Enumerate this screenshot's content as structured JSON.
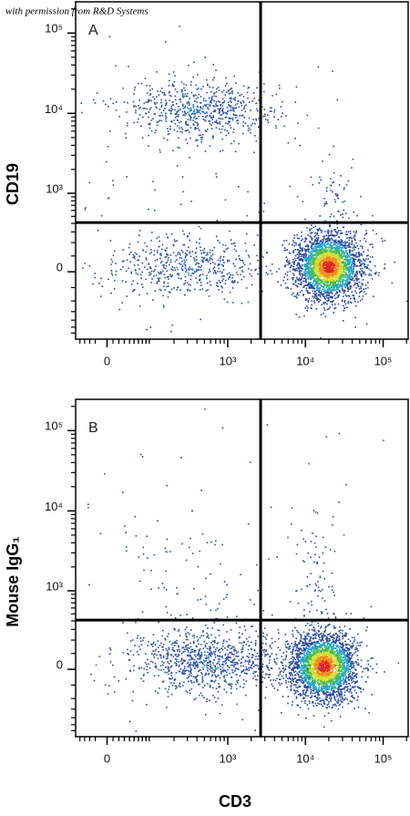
{
  "watermark": "with permission from R&D Systems",
  "x_axis_label": "CD3",
  "chart_data": [
    {
      "type": "scatter",
      "panel_label": "A",
      "y_axis_label": "CD19",
      "xscale": "biex",
      "yscale": "biex",
      "xlim": [
        -60,
        210000
      ],
      "ylim": [
        -720,
        245000
      ],
      "xticks": [
        0,
        {
          "value": 1000,
          "label": "10³"
        },
        {
          "value": 10000,
          "label": "10⁴"
        },
        {
          "value": 100000,
          "label": "10⁵"
        }
      ],
      "yticks": [
        0,
        {
          "value": 1000,
          "label": "10³"
        },
        {
          "value": 10000,
          "label": "10⁴"
        },
        {
          "value": 100000,
          "label": "10⁵"
        }
      ],
      "gate": {
        "x": 2650,
        "y": 410
      }
    },
    {
      "type": "scatter",
      "panel_label": "B",
      "y_axis_label": "Mouse IgG₁",
      "xscale": "biex",
      "yscale": "biex",
      "xlim": [
        -60,
        210000
      ],
      "ylim": [
        -720,
        245000
      ],
      "xticks": [
        0,
        {
          "value": 1000,
          "label": "10³"
        },
        {
          "value": 10000,
          "label": "10⁴"
        },
        {
          "value": 100000,
          "label": "10⁵"
        }
      ],
      "yticks": [
        0,
        {
          "value": 1000,
          "label": "10³"
        },
        {
          "value": 10000,
          "label": "10⁴"
        },
        {
          "value": 100000,
          "label": "10⁵"
        }
      ],
      "gate": {
        "x": 2650,
        "y": 410
      }
    }
  ]
}
